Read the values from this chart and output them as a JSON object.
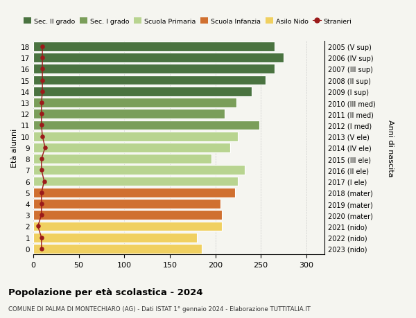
{
  "ages": [
    18,
    17,
    16,
    15,
    14,
    13,
    12,
    11,
    10,
    9,
    8,
    7,
    6,
    5,
    4,
    3,
    2,
    1,
    0
  ],
  "right_labels": [
    "2005 (V sup)",
    "2006 (IV sup)",
    "2007 (III sup)",
    "2008 (II sup)",
    "2009 (I sup)",
    "2010 (III med)",
    "2011 (II med)",
    "2012 (I med)",
    "2013 (V ele)",
    "2014 (IV ele)",
    "2015 (III ele)",
    "2016 (II ele)",
    "2017 (I ele)",
    "2018 (mater)",
    "2019 (mater)",
    "2020 (mater)",
    "2021 (nido)",
    "2022 (nido)",
    "2023 (nido)"
  ],
  "bar_values": [
    265,
    275,
    265,
    255,
    240,
    223,
    210,
    248,
    225,
    216,
    196,
    232,
    225,
    222,
    206,
    207,
    207,
    180,
    185
  ],
  "stranieri_values": [
    10,
    10,
    10,
    10,
    10,
    9,
    9,
    9,
    10,
    13,
    9,
    9,
    12,
    9,
    9,
    9,
    5,
    9,
    9
  ],
  "bar_colors": [
    "#4a7340",
    "#4a7340",
    "#4a7340",
    "#4a7340",
    "#4a7340",
    "#7a9e5a",
    "#7a9e5a",
    "#7a9e5a",
    "#b8d490",
    "#b8d490",
    "#b8d490",
    "#b8d490",
    "#b8d490",
    "#d07030",
    "#d07030",
    "#d07030",
    "#f0d060",
    "#f0d060",
    "#f0d060"
  ],
  "legend_labels": [
    "Sec. II grado",
    "Sec. I grado",
    "Scuola Primaria",
    "Scuola Infanzia",
    "Asilo Nido",
    "Stranieri"
  ],
  "legend_colors": [
    "#4a7340",
    "#7a9e5a",
    "#b8d490",
    "#d07030",
    "#f0d060",
    "#cc1111"
  ],
  "stranieri_color": "#9b1a1a",
  "ylabel_left": "Età alunni",
  "ylabel_right": "Anni di nascita",
  "title": "Popolazione per età scolastica - 2024",
  "subtitle": "COMUNE DI PALMA DI MONTECHIARO (AG) - Dati ISTAT 1° gennaio 2024 - Elaborazione TUTTITALIA.IT",
  "xlim": [
    0,
    320
  ],
  "xticks": [
    0,
    50,
    100,
    150,
    200,
    250,
    300
  ],
  "background_color": "#f5f5f0",
  "grid_color": "#cccccc"
}
